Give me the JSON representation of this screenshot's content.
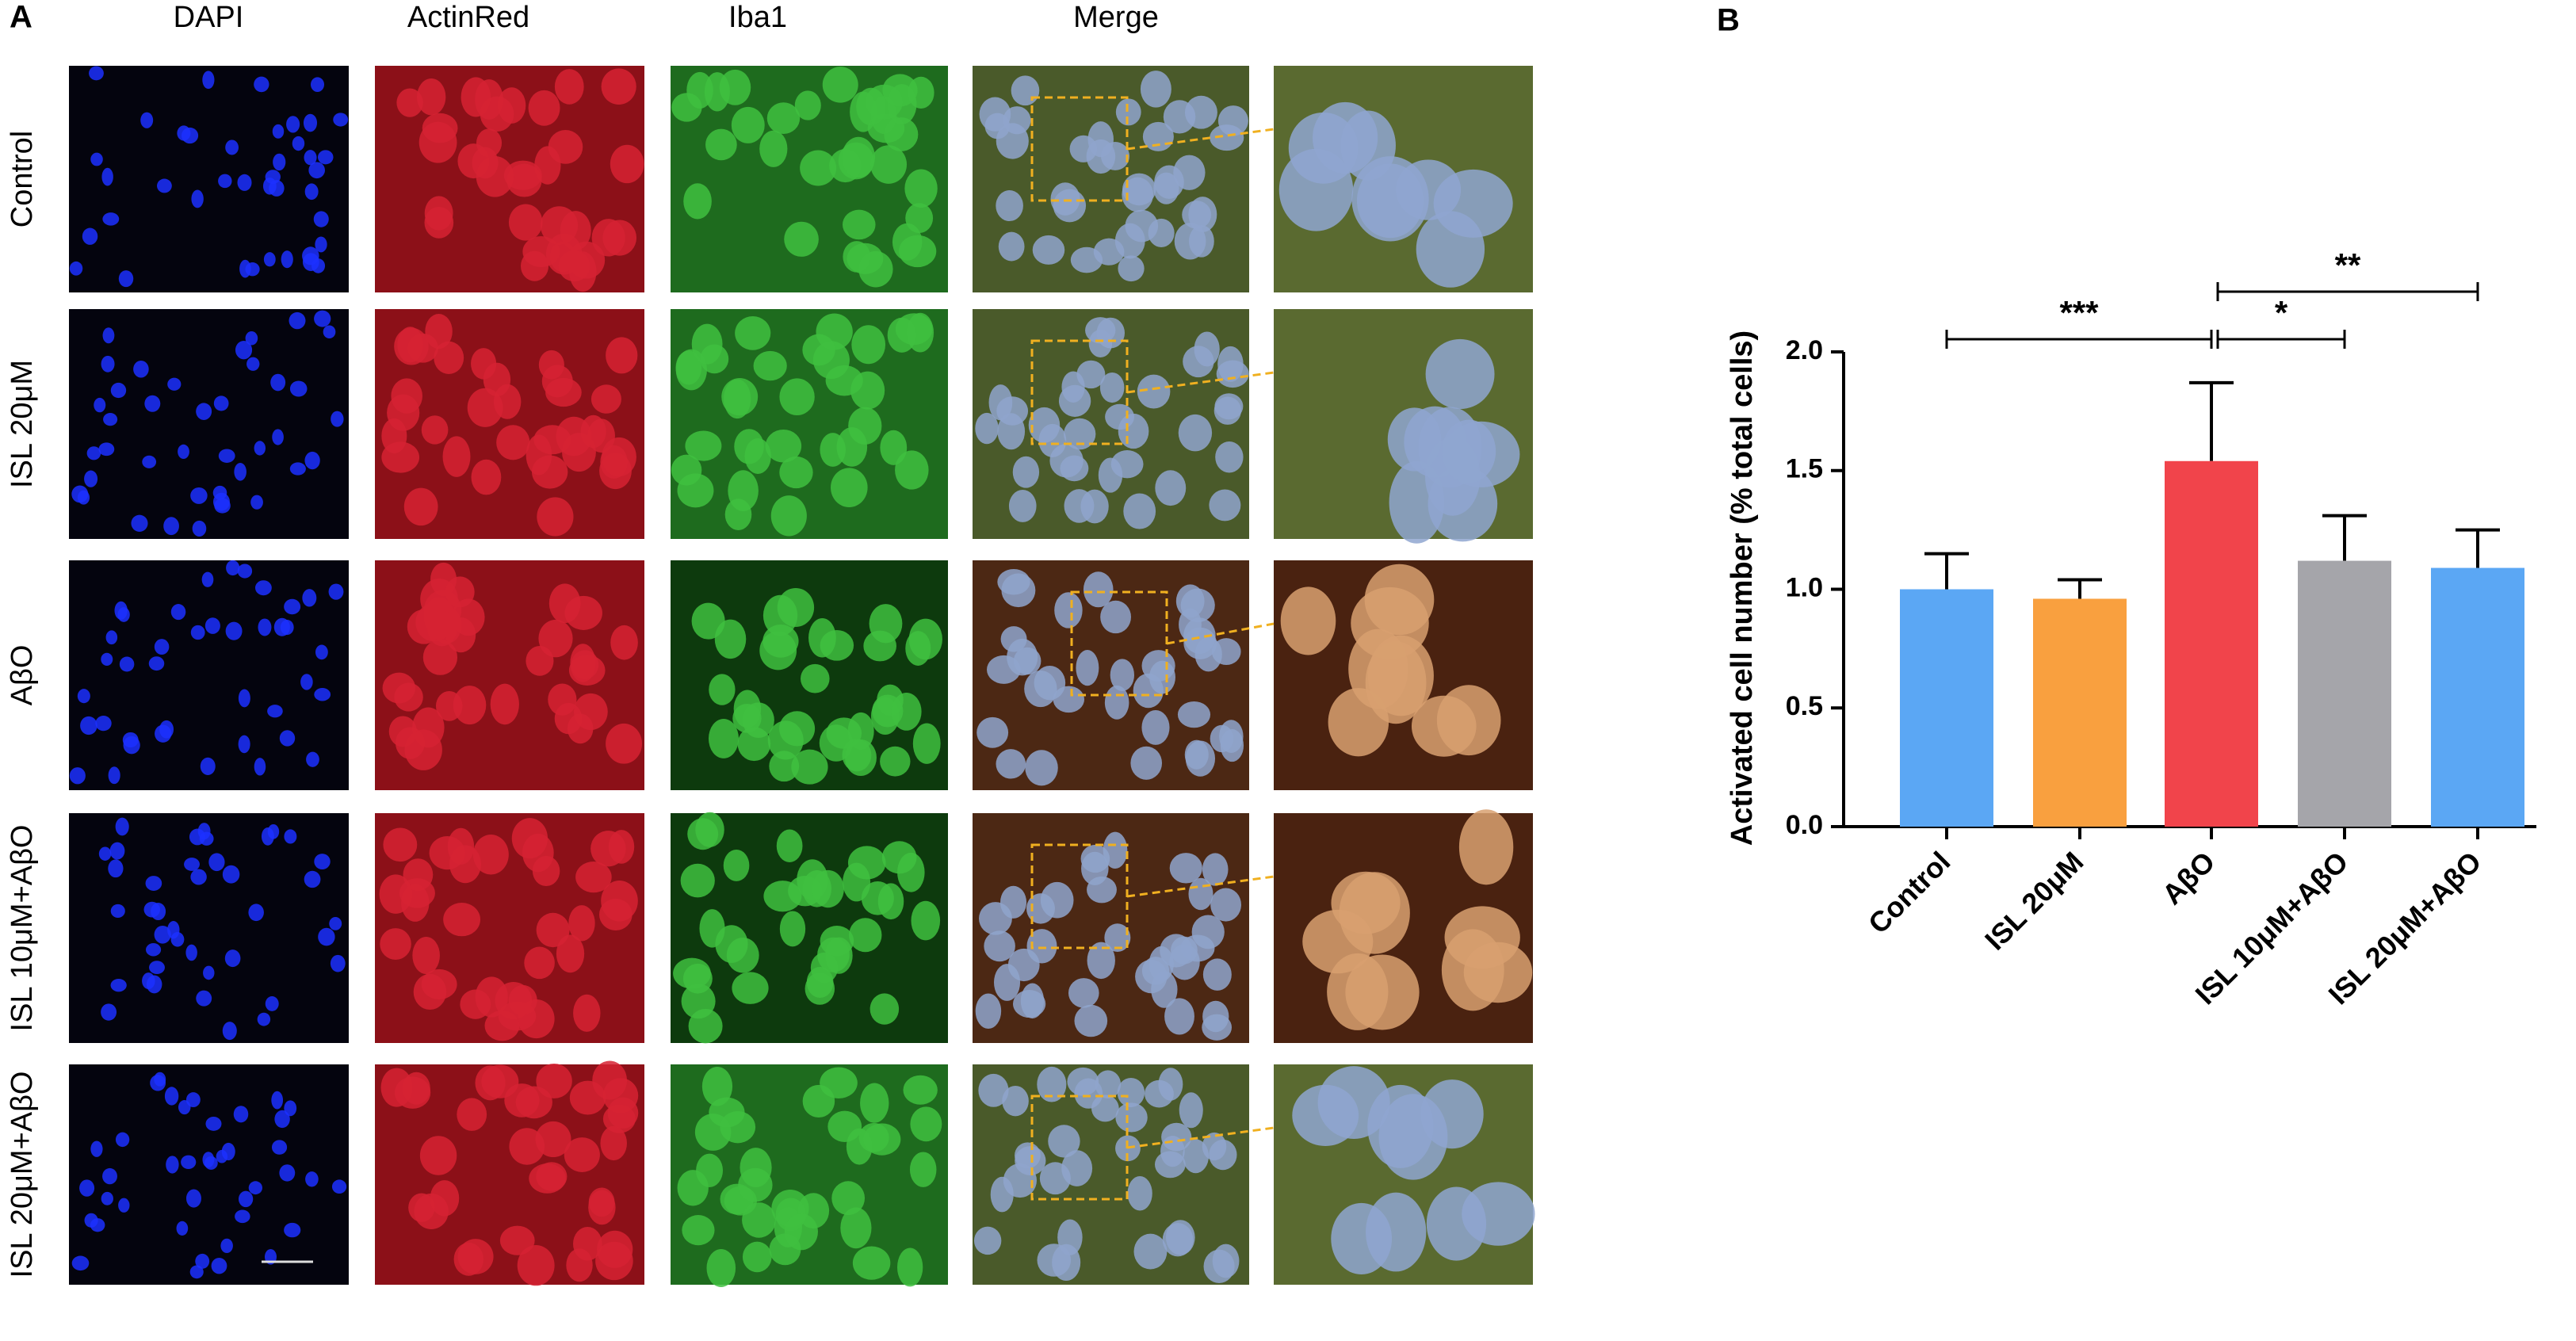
{
  "panel_a": {
    "label": "A",
    "columns": [
      "DAPI",
      "ActinRed",
      "Iba1",
      "Merge"
    ],
    "rows": [
      "Control",
      "ISL 20μM",
      "AβO",
      "ISL 10μM+AβO",
      "ISL 20μM+AβO"
    ]
  },
  "panel_b": {
    "label": "B"
  },
  "chart_data": {
    "type": "bar",
    "ylabel": "Activated cell number (% total cells)",
    "categories": [
      "Control",
      "ISL 20μM",
      "AβO",
      "ISL 10μM+AβO",
      "ISL 20μM+AβO"
    ],
    "values": [
      1.0,
      0.96,
      1.54,
      1.12,
      1.09
    ],
    "errors": [
      0.15,
      0.08,
      0.33,
      0.19,
      0.16
    ],
    "colors": [
      "#5ba7f4",
      "#f9a03f",
      "#f1444b",
      "#a5a5aa",
      "#5ba7f4"
    ],
    "ylim": [
      0,
      2.0
    ],
    "yticks": [
      {
        "value": 0,
        "label": "0.0"
      },
      0.5,
      {
        "value": 1.0,
        "label": "1.0"
      },
      1.5,
      {
        "value": 2.0,
        "label": "2.0"
      }
    ],
    "annotations": [
      {
        "text": "***",
        "between": [
          "Control",
          "AβO"
        ]
      },
      {
        "text": "*",
        "between": [
          "AβO",
          "ISL 10μM+AβO"
        ]
      },
      {
        "text": "**",
        "between": [
          "AβO",
          "ISL 20μM+AβO"
        ]
      }
    ]
  }
}
